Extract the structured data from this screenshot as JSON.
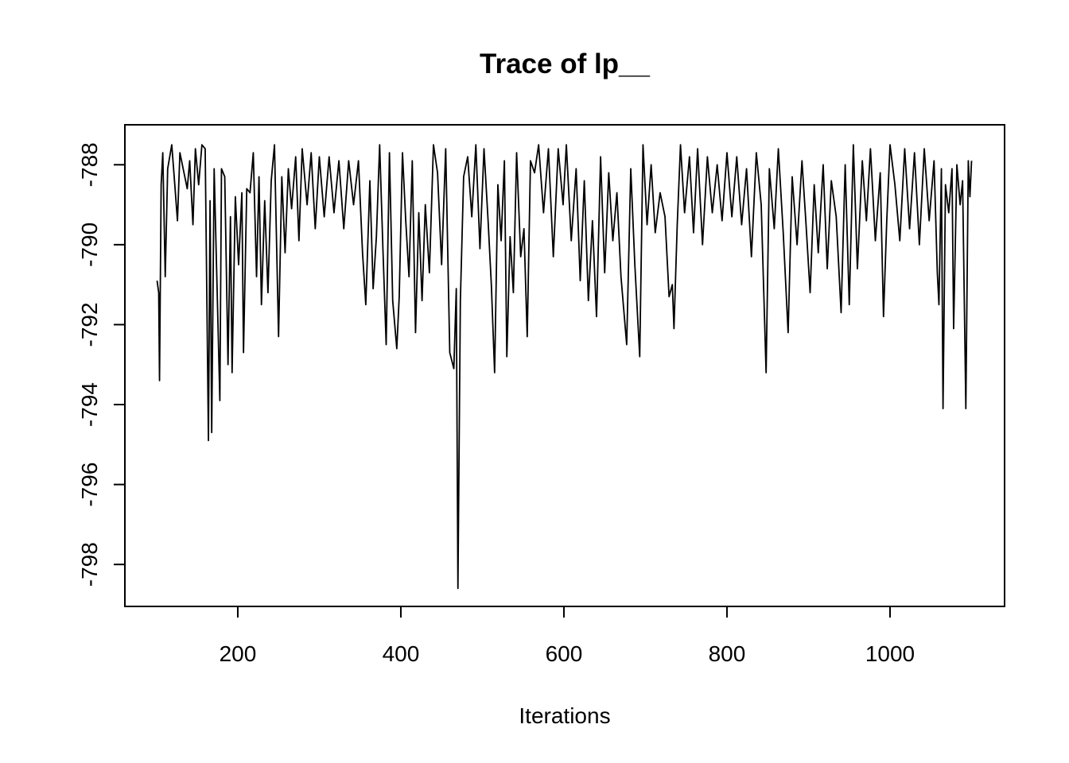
{
  "chart_data": {
    "type": "line",
    "title": "Trace of lp__",
    "x_label": "Iterations",
    "color": "#000000",
    "xlim": [
      61.5,
      1140.5
    ],
    "xticks": [
      200,
      400,
      600,
      800,
      1000
    ],
    "ylim": [
      -799.05,
      -787.0
    ],
    "yticks": [
      -798,
      -796,
      -794,
      -792,
      -790,
      -788
    ],
    "x": [
      101,
      103,
      104,
      106,
      108,
      111,
      114,
      119,
      122,
      126,
      129,
      134,
      138,
      141,
      145,
      148,
      152,
      156,
      160,
      164,
      166,
      168,
      171,
      174,
      178,
      180,
      184,
      188,
      191,
      193,
      197,
      201,
      205,
      207,
      211,
      215,
      219,
      223,
      226,
      229,
      233,
      237,
      241,
      245,
      250,
      254,
      258,
      262,
      266,
      271,
      275,
      279,
      285,
      290,
      295,
      300,
      306,
      312,
      318,
      324,
      330,
      336,
      342,
      348,
      353,
      357,
      362,
      366,
      370,
      374,
      378,
      382,
      386,
      390,
      395,
      398,
      402,
      406,
      410,
      414,
      418,
      422,
      426,
      430,
      435,
      440,
      445,
      450,
      455,
      460,
      465,
      468,
      470,
      473,
      477,
      482,
      487,
      492,
      497,
      502,
      507,
      511,
      515,
      519,
      523,
      527,
      530,
      534,
      538,
      542,
      547,
      551,
      555,
      559,
      564,
      569,
      575,
      581,
      587,
      593,
      599,
      603,
      609,
      615,
      620,
      625,
      630,
      635,
      640,
      645,
      650,
      655,
      660,
      665,
      670,
      677,
      682,
      687,
      693,
      697,
      702,
      707,
      712,
      718,
      724,
      729,
      733,
      735,
      739,
      743,
      748,
      754,
      759,
      764,
      770,
      776,
      782,
      788,
      794,
      800,
      806,
      812,
      818,
      824,
      830,
      836,
      842,
      848,
      852,
      858,
      863,
      869,
      875,
      880,
      886,
      892,
      897,
      902,
      907,
      912,
      918,
      923,
      928,
      934,
      940,
      945,
      950,
      955,
      960,
      966,
      971,
      976,
      982,
      988,
      992,
      996,
      1000,
      1006,
      1012,
      1018,
      1024,
      1030,
      1036,
      1042,
      1048,
      1054,
      1058,
      1060,
      1063,
      1065,
      1068,
      1072,
      1076,
      1078,
      1082,
      1086,
      1089,
      1093,
      1096,
      1098,
      1100
    ],
    "values": [
      -790.9,
      -791.2,
      -793.4,
      -788.5,
      -787.7,
      -790.8,
      -788.1,
      -787.5,
      -788.3,
      -789.4,
      -787.7,
      -788.2,
      -788.6,
      -787.9,
      -789.5,
      -787.6,
      -788.5,
      -787.5,
      -787.6,
      -794.9,
      -788.9,
      -794.7,
      -788.1,
      -790.6,
      -793.9,
      -788.1,
      -788.3,
      -793.0,
      -789.3,
      -793.2,
      -788.8,
      -790.5,
      -788.7,
      -792.7,
      -788.6,
      -788.7,
      -787.7,
      -790.8,
      -788.3,
      -791.5,
      -788.9,
      -791.2,
      -788.4,
      -787.5,
      -792.3,
      -788.3,
      -790.2,
      -788.1,
      -789.1,
      -787.8,
      -789.9,
      -787.6,
      -789.0,
      -787.7,
      -789.6,
      -787.8,
      -789.3,
      -787.8,
      -789.2,
      -787.9,
      -789.6,
      -787.9,
      -789.0,
      -787.9,
      -790.2,
      -791.5,
      -788.4,
      -791.1,
      -789.8,
      -787.5,
      -790.1,
      -792.5,
      -787.7,
      -791.4,
      -792.6,
      -791.3,
      -787.7,
      -789.4,
      -790.8,
      -787.9,
      -792.2,
      -789.2,
      -791.4,
      -789.0,
      -790.7,
      -787.5,
      -788.2,
      -790.5,
      -787.6,
      -792.7,
      -793.1,
      -791.1,
      -798.6,
      -791.4,
      -788.3,
      -787.8,
      -789.3,
      -787.5,
      -790.1,
      -787.6,
      -789.4,
      -791.0,
      -793.2,
      -788.5,
      -789.9,
      -787.9,
      -792.8,
      -789.8,
      -791.2,
      -787.7,
      -790.3,
      -789.6,
      -792.3,
      -787.9,
      -788.2,
      -787.5,
      -789.2,
      -787.6,
      -790.3,
      -787.6,
      -789.0,
      -787.5,
      -789.9,
      -788.1,
      -790.9,
      -788.4,
      -791.4,
      -789.4,
      -791.8,
      -787.8,
      -790.7,
      -788.2,
      -789.9,
      -788.7,
      -790.8,
      -792.5,
      -788.1,
      -790.5,
      -792.8,
      -787.5,
      -789.5,
      -788.0,
      -789.7,
      -788.7,
      -789.3,
      -791.3,
      -791.0,
      -792.1,
      -789.5,
      -787.5,
      -789.2,
      -787.8,
      -789.7,
      -787.6,
      -790.0,
      -787.8,
      -789.2,
      -788.0,
      -789.4,
      -787.7,
      -789.3,
      -787.8,
      -789.5,
      -788.1,
      -790.3,
      -787.7,
      -789.0,
      -793.2,
      -788.1,
      -789.6,
      -787.6,
      -789.7,
      -792.2,
      -788.3,
      -790.0,
      -787.9,
      -789.5,
      -791.2,
      -788.5,
      -790.2,
      -788.0,
      -790.6,
      -788.4,
      -789.3,
      -791.7,
      -788.0,
      -791.5,
      -787.5,
      -790.6,
      -787.9,
      -789.4,
      -787.6,
      -789.9,
      -788.2,
      -791.8,
      -789.4,
      -787.5,
      -788.5,
      -789.9,
      -787.6,
      -789.6,
      -787.7,
      -790.0,
      -787.6,
      -789.4,
      -787.9,
      -790.7,
      -791.5,
      -788.1,
      -794.1,
      -788.5,
      -789.2,
      -788.1,
      -792.1,
      -788.0,
      -789.0,
      -788.4,
      -794.1,
      -787.9,
      -788.8,
      -787.9
    ]
  }
}
